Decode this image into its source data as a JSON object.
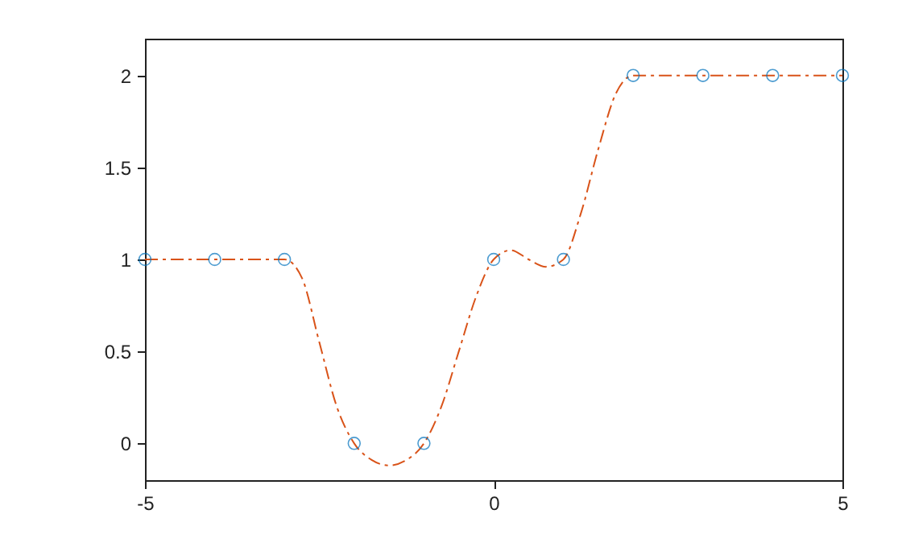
{
  "chart_data": {
    "type": "scatter",
    "xlim": [
      -5,
      5
    ],
    "xticks": [
      -5,
      0,
      5
    ],
    "ylim": [
      -0.2,
      2.2
    ],
    "yticks": [
      0,
      0.5,
      1,
      1.5,
      2
    ],
    "grid": false,
    "series": [
      {
        "type": "line",
        "color": "#d95319",
        "line_style": "dashed",
        "marker": "none",
        "x": [
          -5,
          -4,
          -3,
          -2.75,
          -2.5,
          -2.25,
          -2,
          -1.75,
          -1.5,
          -1.25,
          -1,
          -0.75,
          -0.5,
          -0.25,
          0,
          0.25,
          0.5,
          0.75,
          1,
          1.25,
          1.5,
          1.75,
          2,
          3,
          4,
          5
        ],
        "values": [
          1,
          1,
          1,
          0.9,
          0.55,
          0.2,
          0,
          -0.09,
          -0.12,
          -0.09,
          0,
          0.2,
          0.5,
          0.8,
          1,
          1.05,
          1,
          0.96,
          1,
          1.25,
          1.6,
          1.9,
          2,
          2,
          2,
          2
        ]
      },
      {
        "color": "#0072bd",
        "marker": "circle",
        "x": [
          -5,
          -4,
          -3,
          -2,
          -1,
          0,
          1,
          2,
          3,
          4,
          5
        ],
        "values": [
          1,
          1,
          1,
          0,
          0,
          1,
          1,
          2,
          2,
          2,
          2
        ]
      }
    ]
  }
}
